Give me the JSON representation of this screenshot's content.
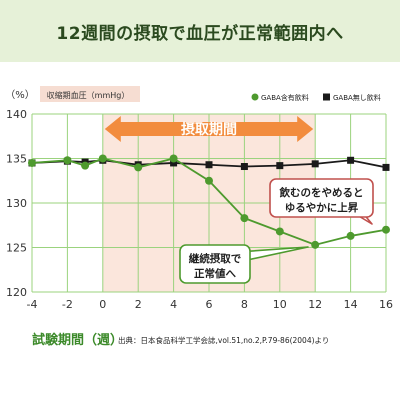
{
  "banner": {
    "title": "12週間の摂取で血圧が正常範囲内へ"
  },
  "chart_data": {
    "type": "line",
    "title": "",
    "ylabel": "収縮期血圧（mmHg）",
    "yunit": "（%）",
    "xlabel": "試験期間（週）",
    "source": "出典：日本食品科学工学会誌,vol.51,no.2,P.79-86(2004)より",
    "xlim": [
      -4,
      16
    ],
    "ylim": [
      120,
      140
    ],
    "x_ticks": [
      -4,
      -2,
      0,
      2,
      4,
      6,
      8,
      10,
      12,
      14,
      16
    ],
    "y_ticks": [
      120,
      125,
      130,
      135,
      140
    ],
    "grid": true,
    "legend_position": "top-right",
    "period": {
      "label": "摂取期間",
      "start": 0,
      "end": 12
    },
    "series": [
      {
        "name": "GABA含有飲料",
        "color": "#4e9a2e",
        "marker": "circle",
        "x": [
          -4,
          -2,
          -1,
          0,
          2,
          4,
          6,
          8,
          10,
          12,
          14,
          16
        ],
        "y": [
          134.5,
          134.8,
          134.2,
          135.0,
          134.0,
          135.0,
          132.5,
          128.3,
          126.8,
          125.3,
          126.3,
          127.0
        ]
      },
      {
        "name": "GABA無し飲料",
        "color": "#1a1a1a",
        "marker": "square",
        "x": [
          -4,
          -2,
          -1,
          0,
          2,
          4,
          6,
          8,
          10,
          12,
          14,
          16
        ],
        "y": [
          134.5,
          134.7,
          134.6,
          134.8,
          134.3,
          134.5,
          134.3,
          134.1,
          134.2,
          134.4,
          134.8,
          134.0
        ]
      }
    ],
    "annotations": [
      {
        "lines": [
          "継続摂取で",
          "正常値へ"
        ]
      },
      {
        "lines": [
          "飲むのをやめると",
          "ゆるやかに上昇"
        ]
      }
    ]
  }
}
